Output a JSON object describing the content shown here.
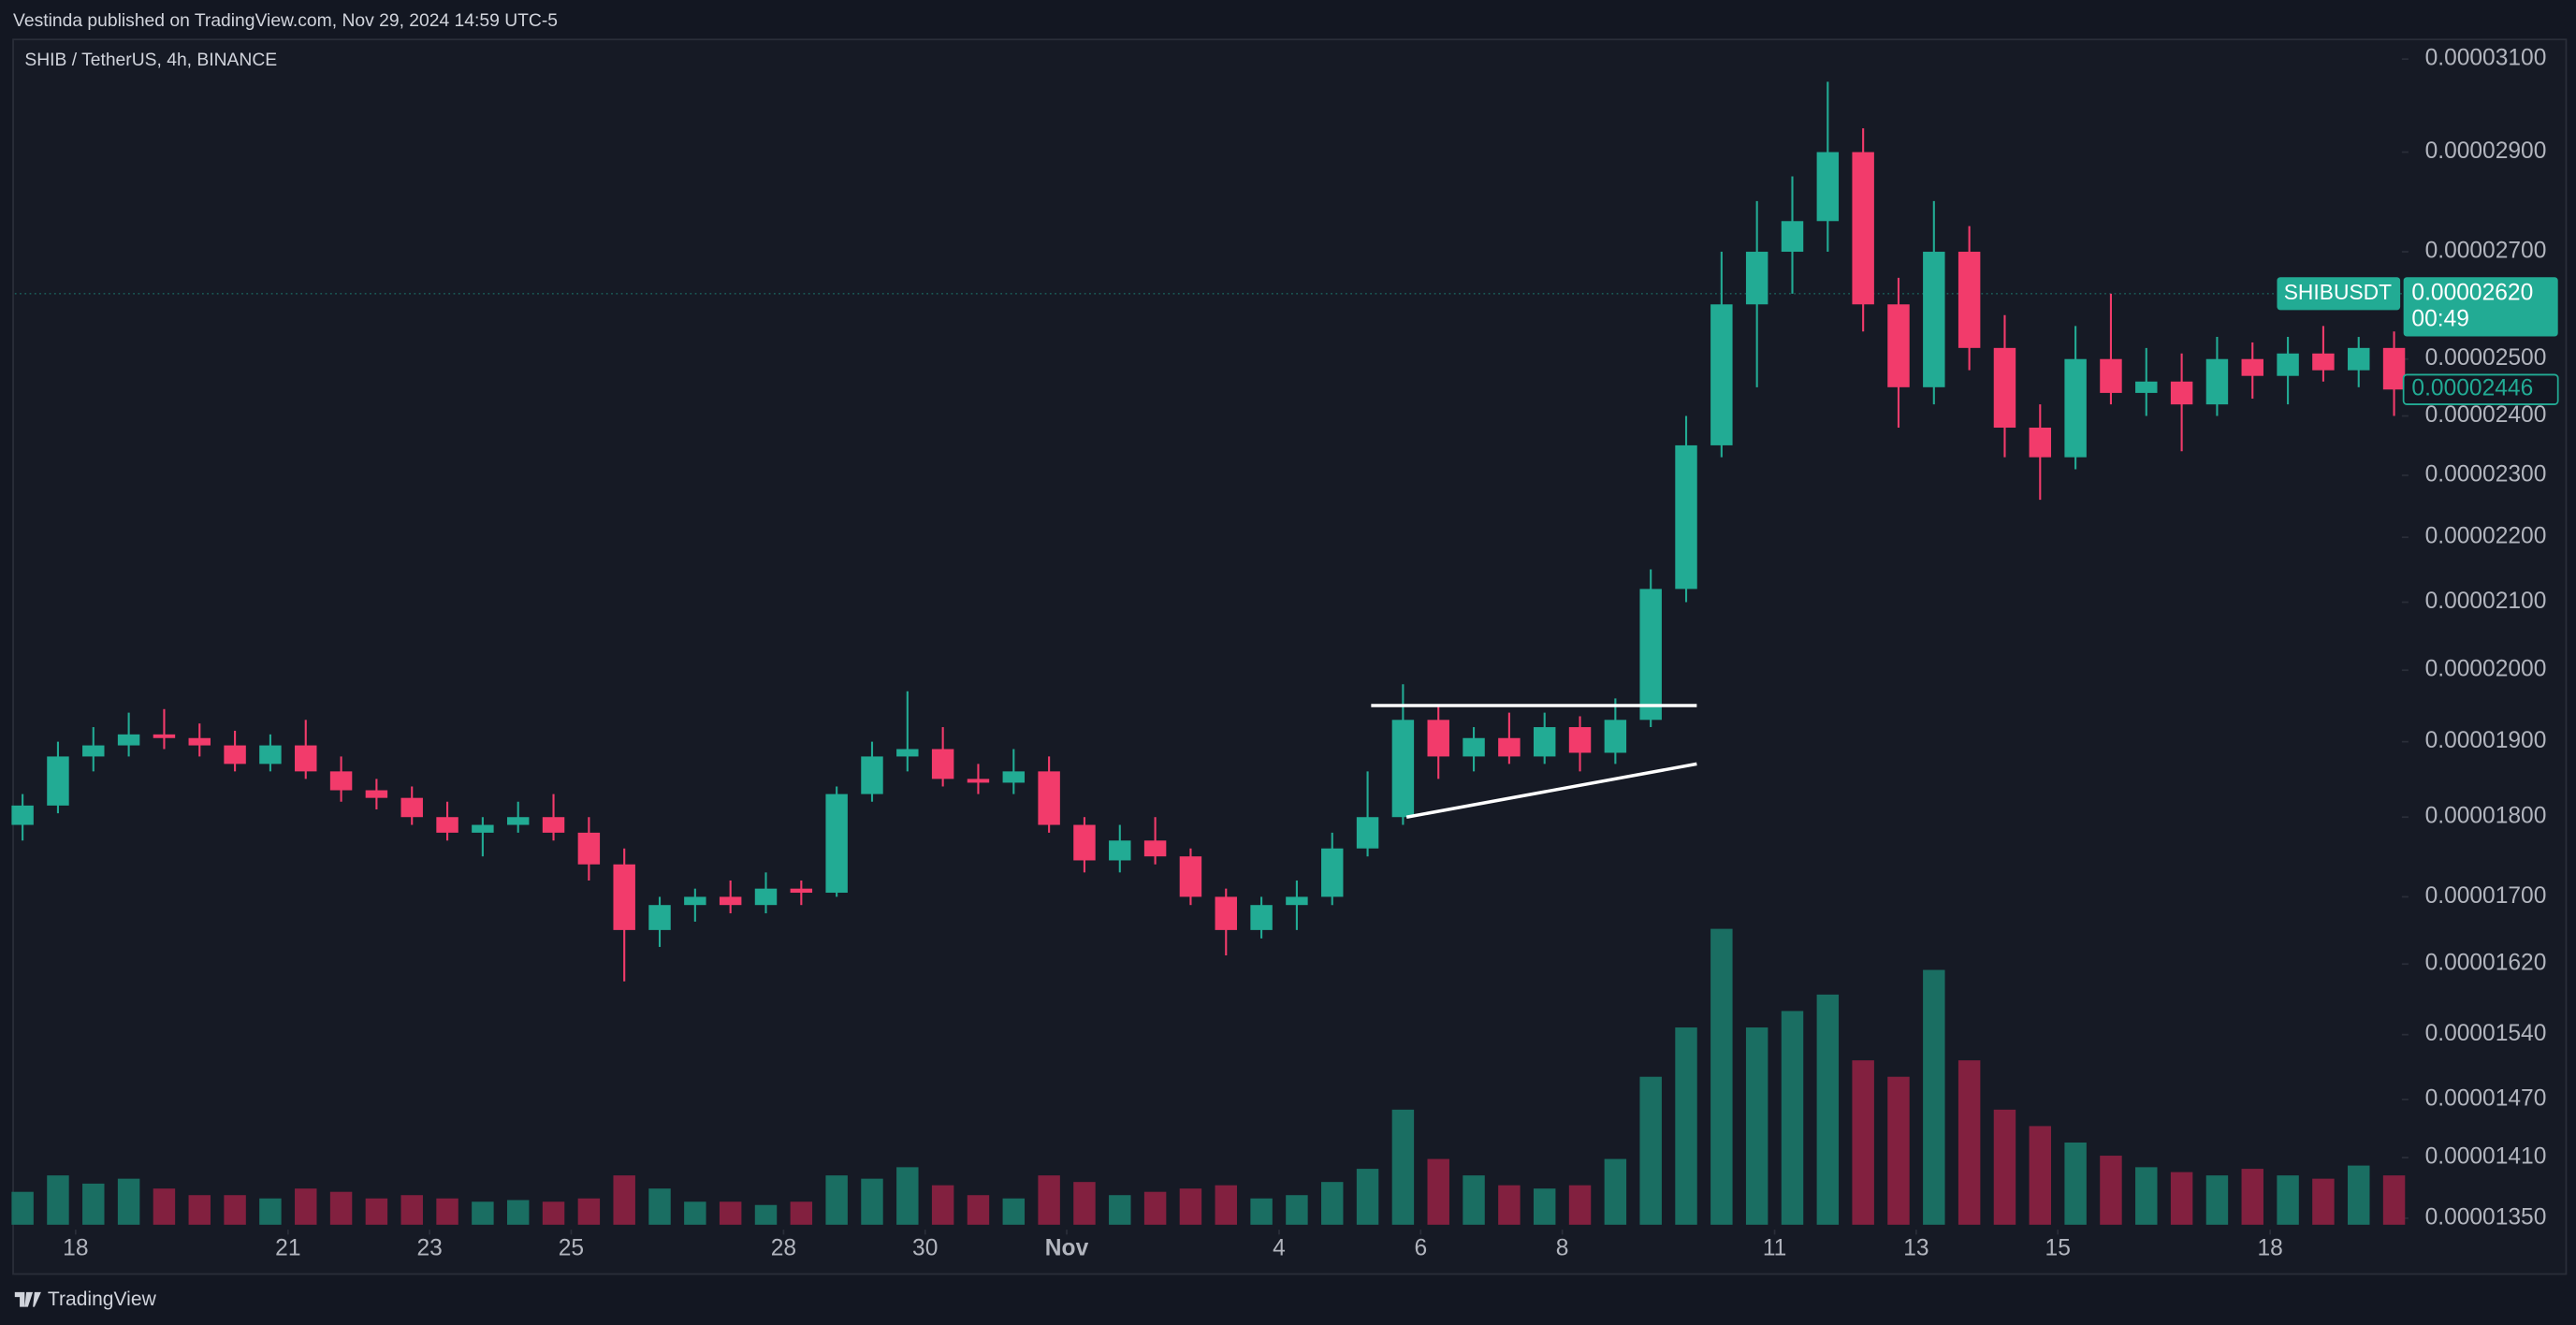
{
  "chart_data": {
    "type": "candlestick",
    "publisher_note": "Vestinda published on TradingView.com, Nov 29, 2024 14:59 UTC-5",
    "title": "SHIB / TetherUS, 4h, BINANCE",
    "footer": "TradingView",
    "log_scale": true,
    "grid": false,
    "up_color": "#22ab94",
    "down_color": "#f23b6b",
    "volume_up_color": "#1a6e62",
    "volume_down_color": "#82203f",
    "xlim": [
      17.14,
      50.86
    ],
    "xticks": [
      18,
      21,
      23,
      25,
      28,
      30,
      {
        "value": 32,
        "label": "Nov"
      },
      {
        "value": 35,
        "label": "4"
      },
      {
        "value": 37,
        "label": "6"
      },
      {
        "value": 39,
        "label": "8"
      },
      {
        "value": 42,
        "label": "11"
      },
      {
        "value": 44,
        "label": "13"
      },
      {
        "value": 46,
        "label": "15"
      },
      {
        "value": 49,
        "label": "18"
      }
    ],
    "ylim": [
      1.339e-05,
      3.144e-05
    ],
    "yticks": [
      {
        "value": 3.1e-05,
        "label": "0.00003100"
      },
      {
        "value": 2.9e-05,
        "label": "0.00002900"
      },
      {
        "value": 2.7e-05,
        "label": "0.00002700"
      },
      {
        "value": 2.5e-05,
        "label": "0.00002500"
      },
      {
        "value": 2.4e-05,
        "label": "0.00002400"
      },
      {
        "value": 2.3e-05,
        "label": "0.00002300"
      },
      {
        "value": 2.2e-05,
        "label": "0.00002200"
      },
      {
        "value": 2.1e-05,
        "label": "0.00002100"
      },
      {
        "value": 2e-05,
        "label": "0.00002000"
      },
      {
        "value": 1.9e-05,
        "label": "0.00001900"
      },
      {
        "value": 1.8e-05,
        "label": "0.00001800"
      },
      {
        "value": 1.7e-05,
        "label": "0.00001700"
      },
      {
        "value": 1.62e-05,
        "label": "0.00001620"
      },
      {
        "value": 1.54e-05,
        "label": "0.00001540"
      },
      {
        "value": 1.47e-05,
        "label": "0.00001470"
      },
      {
        "value": 1.41e-05,
        "label": "0.00001410"
      },
      {
        "value": 1.35e-05,
        "label": "0.00001350"
      }
    ],
    "x": [
      17.25,
      17.75,
      18.25,
      18.75,
      19.25,
      19.75,
      20.25,
      20.75,
      21.25,
      21.75,
      22.25,
      22.75,
      23.25,
      23.75,
      24.25,
      24.75,
      25.25,
      25.75,
      26.25,
      26.75,
      27.25,
      27.75,
      28.25,
      28.75,
      29.25,
      29.75,
      30.25,
      30.75,
      31.25,
      31.75,
      32.25,
      32.75,
      33.25,
      33.75,
      34.25,
      34.75,
      35.25,
      35.75,
      36.25,
      36.75,
      37.25,
      37.75,
      38.25,
      38.75,
      39.25,
      39.75,
      40.25,
      40.75,
      41.25,
      41.75,
      42.25,
      42.75,
      43.25,
      43.75,
      44.25,
      44.75,
      45.25,
      45.75,
      46.25,
      46.75,
      47.25,
      47.75,
      48.25,
      48.75,
      49.25,
      49.75,
      50.25,
      50.75
    ],
    "open": [
      1.79e-05,
      1.815e-05,
      1.88e-05,
      1.895e-05,
      1.91e-05,
      1.905e-05,
      1.895e-05,
      1.87e-05,
      1.895e-05,
      1.86e-05,
      1.835e-05,
      1.825e-05,
      1.8e-05,
      1.78e-05,
      1.79e-05,
      1.8e-05,
      1.78e-05,
      1.74e-05,
      1.66e-05,
      1.69e-05,
      1.7e-05,
      1.69e-05,
      1.71e-05,
      1.705e-05,
      1.83e-05,
      1.88e-05,
      1.89e-05,
      1.85e-05,
      1.845e-05,
      1.86e-05,
      1.79e-05,
      1.745e-05,
      1.77e-05,
      1.75e-05,
      1.7e-05,
      1.66e-05,
      1.69e-05,
      1.7e-05,
      1.76e-05,
      1.8e-05,
      1.93e-05,
      1.88e-05,
      1.905e-05,
      1.88e-05,
      1.92e-05,
      1.885e-05,
      1.93e-05,
      2.12e-05,
      2.35e-05,
      2.6e-05,
      2.7e-05,
      2.76e-05,
      2.9e-05,
      2.6e-05,
      2.45e-05,
      2.7e-05,
      2.52e-05,
      2.38e-05,
      2.33e-05,
      2.5e-05,
      2.44e-05,
      2.46e-05,
      2.42e-05,
      2.5e-05,
      2.47e-05,
      2.51e-05,
      2.48e-05,
      2.52e-05
    ],
    "high": [
      1.83e-05,
      1.9e-05,
      1.92e-05,
      1.94e-05,
      1.945e-05,
      1.925e-05,
      1.915e-05,
      1.91e-05,
      1.93e-05,
      1.88e-05,
      1.85e-05,
      1.84e-05,
      1.82e-05,
      1.8e-05,
      1.82e-05,
      1.83e-05,
      1.8e-05,
      1.76e-05,
      1.7e-05,
      1.71e-05,
      1.72e-05,
      1.73e-05,
      1.72e-05,
      1.84e-05,
      1.9e-05,
      1.97e-05,
      1.92e-05,
      1.87e-05,
      1.89e-05,
      1.88e-05,
      1.8e-05,
      1.79e-05,
      1.8e-05,
      1.76e-05,
      1.71e-05,
      1.7e-05,
      1.72e-05,
      1.78e-05,
      1.86e-05,
      1.98e-05,
      1.95e-05,
      1.92e-05,
      1.94e-05,
      1.94e-05,
      1.935e-05,
      1.96e-05,
      2.15e-05,
      2.4e-05,
      2.7e-05,
      2.8e-05,
      2.85e-05,
      3.05e-05,
      2.95e-05,
      2.65e-05,
      2.8e-05,
      2.75e-05,
      2.58e-05,
      2.42e-05,
      2.56e-05,
      2.62e-05,
      2.52e-05,
      2.51e-05,
      2.54e-05,
      2.53e-05,
      2.54e-05,
      2.56e-05,
      2.54e-05,
      2.55e-05
    ],
    "low": [
      1.77e-05,
      1.805e-05,
      1.86e-05,
      1.88e-05,
      1.89e-05,
      1.88e-05,
      1.86e-05,
      1.86e-05,
      1.85e-05,
      1.82e-05,
      1.81e-05,
      1.79e-05,
      1.77e-05,
      1.75e-05,
      1.78e-05,
      1.77e-05,
      1.72e-05,
      1.6e-05,
      1.64e-05,
      1.67e-05,
      1.68e-05,
      1.68e-05,
      1.69e-05,
      1.7e-05,
      1.82e-05,
      1.86e-05,
      1.84e-05,
      1.83e-05,
      1.83e-05,
      1.78e-05,
      1.73e-05,
      1.73e-05,
      1.74e-05,
      1.69e-05,
      1.63e-05,
      1.65e-05,
      1.66e-05,
      1.69e-05,
      1.75e-05,
      1.79e-05,
      1.85e-05,
      1.86e-05,
      1.87e-05,
      1.87e-05,
      1.86e-05,
      1.87e-05,
      1.92e-05,
      2.1e-05,
      2.33e-05,
      2.45e-05,
      2.62e-05,
      2.7e-05,
      2.55e-05,
      2.38e-05,
      2.42e-05,
      2.48e-05,
      2.33e-05,
      2.26e-05,
      2.31e-05,
      2.42e-05,
      2.4e-05,
      2.34e-05,
      2.4e-05,
      2.43e-05,
      2.42e-05,
      2.46e-05,
      2.45e-05,
      2.4e-05
    ],
    "close": [
      1.815e-05,
      1.88e-05,
      1.895e-05,
      1.91e-05,
      1.905e-05,
      1.895e-05,
      1.87e-05,
      1.895e-05,
      1.86e-05,
      1.835e-05,
      1.825e-05,
      1.8e-05,
      1.78e-05,
      1.79e-05,
      1.8e-05,
      1.78e-05,
      1.74e-05,
      1.66e-05,
      1.69e-05,
      1.7e-05,
      1.69e-05,
      1.71e-05,
      1.705e-05,
      1.83e-05,
      1.88e-05,
      1.89e-05,
      1.85e-05,
      1.845e-05,
      1.86e-05,
      1.79e-05,
      1.745e-05,
      1.77e-05,
      1.75e-05,
      1.7e-05,
      1.66e-05,
      1.69e-05,
      1.7e-05,
      1.76e-05,
      1.8e-05,
      1.93e-05,
      1.88e-05,
      1.905e-05,
      1.88e-05,
      1.92e-05,
      1.885e-05,
      1.93e-05,
      2.12e-05,
      2.35e-05,
      2.6e-05,
      2.7e-05,
      2.76e-05,
      2.9e-05,
      2.6e-05,
      2.45e-05,
      2.7e-05,
      2.52e-05,
      2.38e-05,
      2.33e-05,
      2.5e-05,
      2.44e-05,
      2.46e-05,
      2.42e-05,
      2.5e-05,
      2.47e-05,
      2.51e-05,
      2.48e-05,
      2.52e-05,
      2.446e-05
    ],
    "volume": [
      20,
      30,
      25,
      28,
      22,
      18,
      18,
      16,
      22,
      20,
      16,
      18,
      16,
      14,
      15,
      14,
      16,
      30,
      22,
      14,
      14,
      12,
      14,
      30,
      28,
      35,
      24,
      18,
      16,
      30,
      26,
      18,
      20,
      22,
      24,
      16,
      18,
      26,
      34,
      70,
      40,
      30,
      24,
      22,
      24,
      40,
      90,
      120,
      180,
      120,
      130,
      140,
      100,
      90,
      155,
      100,
      70,
      60,
      50,
      42,
      35,
      32,
      30,
      34,
      30,
      28,
      36,
      30
    ],
    "trendlines": [
      {
        "x": [
          36.3,
          40.9
        ],
        "y": [
          1.95e-05,
          1.95e-05
        ]
      },
      {
        "x": [
          36.8,
          40.9
        ],
        "y": [
          1.8e-05,
          1.87e-05
        ]
      }
    ],
    "symbol_label": "SHIBUSDT",
    "last_price": {
      "value": 2.62e-05,
      "label": "0.00002620"
    },
    "countdown": "00:49",
    "prev_close": {
      "value": 2.446e-05,
      "label": "0.00002446"
    }
  }
}
